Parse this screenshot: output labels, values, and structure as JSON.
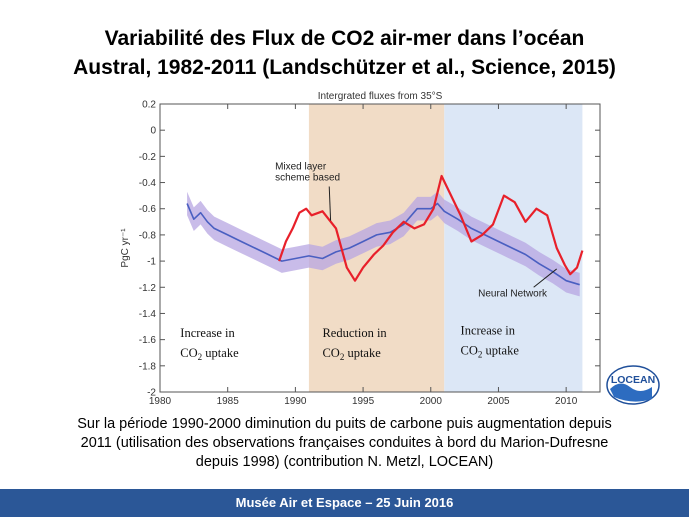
{
  "slide": {
    "title_line1": "Variabilité des Flux de CO2 air-mer dans l’océan",
    "title_line2": "Austral, 1982-2011  (Landschützer et al., Science, 2015)",
    "caption_line1": "Sur la période 1990-2000 diminution du puits de carbone puis augmentation depuis",
    "caption_line2": "2011 (utilisation des observations françaises conduites à bord du Marion-Dufresne",
    "caption_line3": "depuis 1998) (contribution N. Metzl, LOCEAN)",
    "footer": "Musée Air et Espace – 25 Juin 2016",
    "logo_text": "LOCEAN"
  },
  "colors": {
    "footer_bg": "#2b5797",
    "red_series": "#e8202a",
    "blue_series": "#4a5fc1",
    "band": "#b7a6e2",
    "shade_reduction": "#f1dcc6",
    "shade_increase": "#dce7f6"
  },
  "chart_data": {
    "type": "line",
    "title": "Intergrated fluxes from 35°S",
    "xlabel": "",
    "ylabel": "PgC yr⁻¹",
    "xlim": [
      1980,
      2012.5
    ],
    "ylim": [
      -2,
      0.2
    ],
    "xticks": [
      1980,
      1985,
      1990,
      1995,
      2000,
      2005,
      2010
    ],
    "yticks": [
      0.2,
      0,
      -0.2,
      -0.4,
      -0.6,
      -0.8,
      -1,
      -1.2,
      -1.4,
      -1.6,
      -1.8,
      -2
    ],
    "grid": false,
    "shaded_periods": [
      {
        "start": 1991,
        "end": 2001,
        "color": "#f1dcc6",
        "label_line1": "Reduction in",
        "label_line2": "CO",
        "label_sub": "2",
        "label_tail": " uptake"
      },
      {
        "start": 2001,
        "end": 2011.2,
        "color": "#dce7f6",
        "label_line1": "Increase  in",
        "label_line2": "CO",
        "label_sub": "2",
        "label_tail": " uptake"
      }
    ],
    "left_annotation": {
      "label_line1": "Increase  in",
      "label_line2": "CO",
      "label_sub": "2",
      "label_tail": " uptake"
    },
    "series": [
      {
        "name": "Neural Network",
        "color": "#4a5fc1",
        "uncertainty": 0.09,
        "x": [
          1982,
          1982.5,
          1983,
          1983.5,
          1984,
          1985,
          1986,
          1987,
          1988,
          1989,
          1990,
          1991,
          1992,
          1993,
          1994,
          1995,
          1996,
          1997,
          1998,
          1999,
          2000,
          2000.5,
          2001,
          2002,
          2003,
          2004,
          2005,
          2006,
          2007,
          2008,
          2009,
          2010,
          2011
        ],
        "y": [
          -0.56,
          -0.68,
          -0.63,
          -0.7,
          -0.75,
          -0.8,
          -0.85,
          -0.9,
          -0.95,
          -1.0,
          -0.98,
          -0.96,
          -0.98,
          -0.93,
          -0.9,
          -0.85,
          -0.8,
          -0.78,
          -0.72,
          -0.6,
          -0.6,
          -0.56,
          -0.62,
          -0.68,
          -0.75,
          -0.8,
          -0.85,
          -0.9,
          -0.95,
          -1.02,
          -1.08,
          -1.15,
          -1.18
        ]
      },
      {
        "name": "Mixed layer scheme based",
        "color": "#e8202a",
        "x": [
          1988.8,
          1989.3,
          1989.8,
          1990.3,
          1990.8,
          1991.2,
          1992,
          1993,
          1993.8,
          1994.4,
          1995,
          1995.8,
          1996.5,
          1997.2,
          1998,
          1998.8,
          1999.5,
          2000.2,
          2000.8,
          2001.5,
          2002.2,
          2003,
          2003.8,
          2004.6,
          2005.4,
          2006.2,
          2007,
          2007.8,
          2008.6,
          2009.3,
          2009.9,
          2010.3,
          2010.8,
          2011.2
        ],
        "y": [
          -1.0,
          -0.85,
          -0.75,
          -0.63,
          -0.6,
          -0.65,
          -0.62,
          -0.75,
          -1.05,
          -1.15,
          -1.05,
          -0.95,
          -0.88,
          -0.78,
          -0.7,
          -0.75,
          -0.72,
          -0.6,
          -0.35,
          -0.5,
          -0.65,
          -0.85,
          -0.8,
          -0.72,
          -0.5,
          -0.55,
          -0.7,
          -0.6,
          -0.65,
          -0.9,
          -1.03,
          -1.1,
          -1.05,
          -0.92
        ]
      }
    ],
    "annotations": [
      {
        "text_line1": "Mixed layer",
        "text_line2": "scheme based",
        "x": 1988.5,
        "y": -0.3
      },
      {
        "text_line1": "Neural Network",
        "text_line2": "",
        "x": 2003.5,
        "y": -1.27
      }
    ]
  }
}
